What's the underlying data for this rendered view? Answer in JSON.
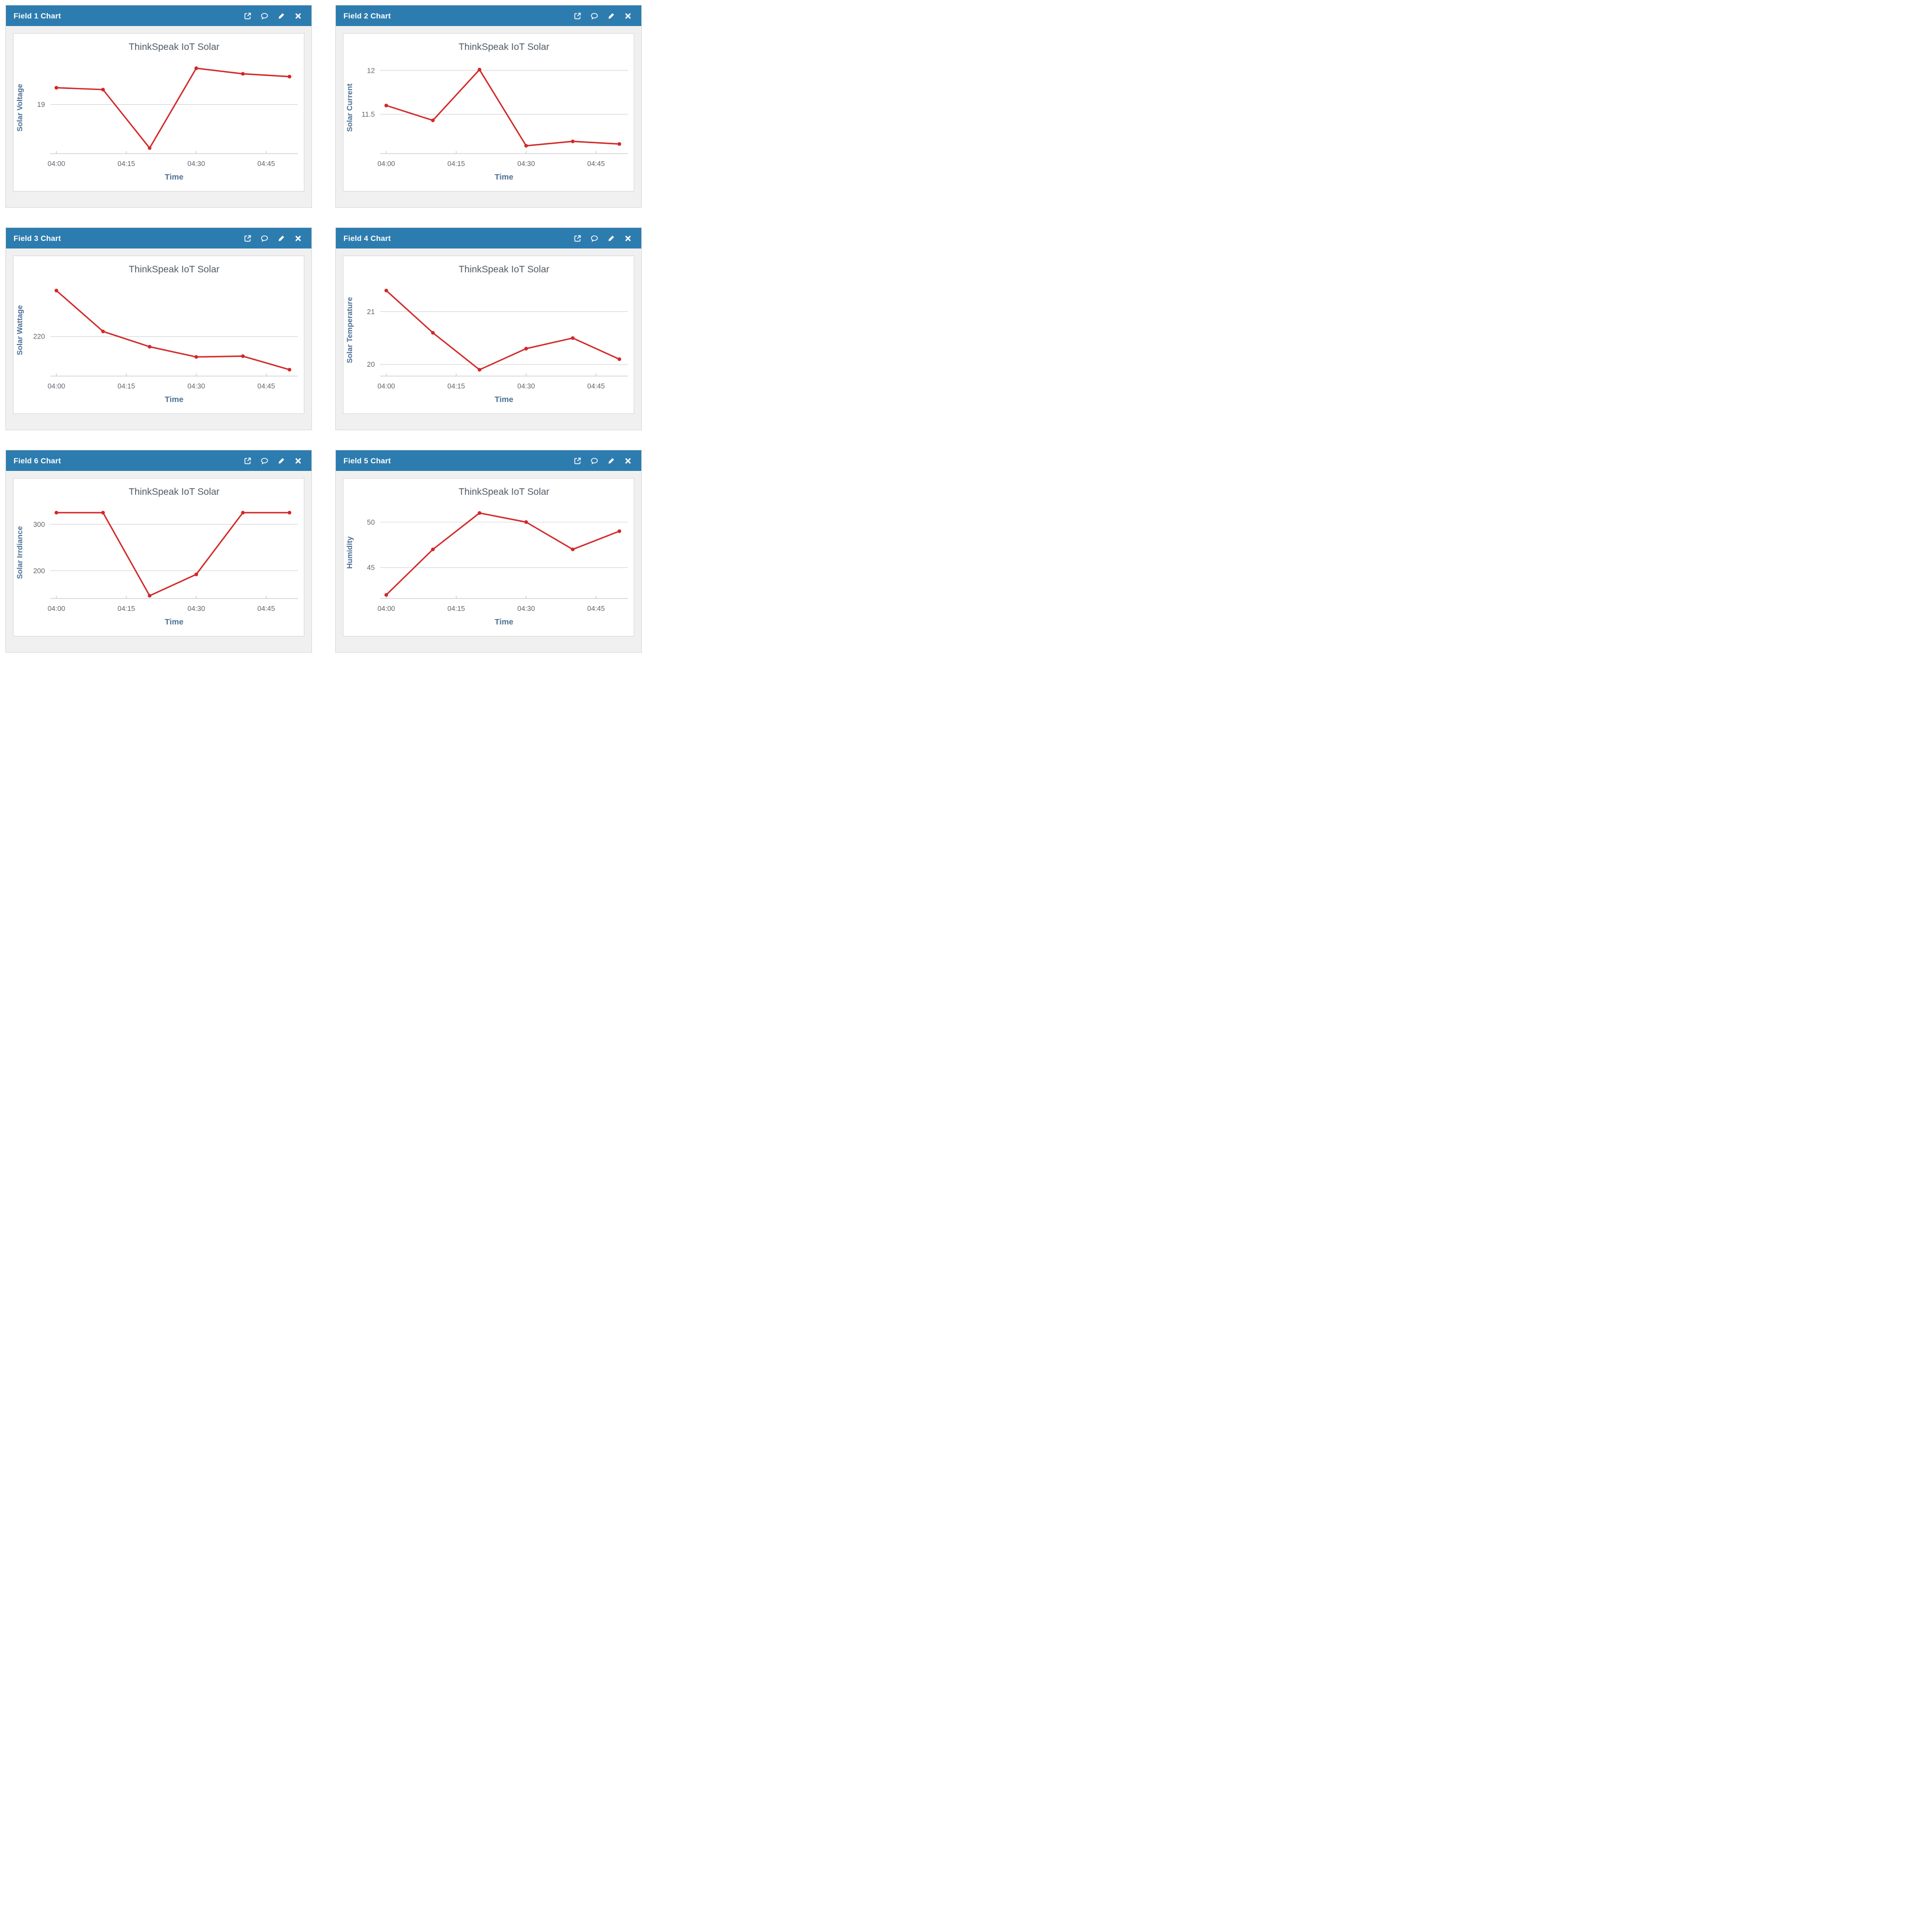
{
  "colors": {
    "header_bg": "#2d7caf",
    "header_text": "#ffffff",
    "line": "#d22727",
    "marker": "#d22727",
    "chart_title": "#4e5a66",
    "axis_label": "#4d7195",
    "tick_label": "#5f656b",
    "gridline": "#d2d2d2",
    "axis_line": "#c6c9cc",
    "panel_body_bg": "#f0f0f0",
    "card_bg": "#ffffff",
    "card_border": "#d9d9d9"
  },
  "panel_actions": [
    {
      "name": "external-link",
      "icon": "external-link-icon"
    },
    {
      "name": "comment",
      "icon": "comment-icon"
    },
    {
      "name": "edit",
      "icon": "pencil-icon"
    },
    {
      "name": "close",
      "icon": "close-icon"
    }
  ],
  "panels": [
    {
      "title": "Field 1 Chart"
    },
    {
      "title": "Field 2 Chart"
    },
    {
      "title": "Field 3 Chart"
    },
    {
      "title": "Field 4 Chart"
    },
    {
      "title": "Field 6 Chart"
    },
    {
      "title": "Field 5 Chart"
    }
  ],
  "chart_data": [
    {
      "type": "line",
      "title": "ThinkSpeak IoT Solar",
      "xlabel": "Time",
      "ylabel": "Solar Voltage",
      "x_times": [
        "04:00",
        "04:10",
        "04:20",
        "04:30",
        "04:40",
        "04:50"
      ],
      "x_minutes": [
        0,
        10,
        20,
        30,
        40,
        50
      ],
      "values": [
        19.18,
        19.16,
        18.53,
        19.39,
        19.33,
        19.3
      ],
      "x_ticks": [
        {
          "minute": 0,
          "label": "04:00"
        },
        {
          "minute": 15,
          "label": "04:15"
        },
        {
          "minute": 30,
          "label": "04:30"
        },
        {
          "minute": 45,
          "label": "04:45"
        }
      ],
      "y_gridlines": [
        {
          "value": 19,
          "label": "19"
        }
      ],
      "ylim": [
        18.47,
        19.46
      ],
      "xlim": [
        -1.3,
        51.8
      ],
      "legend": "none",
      "grid": true
    },
    {
      "type": "line",
      "title": "ThinkSpeak IoT Solar",
      "xlabel": "Time",
      "ylabel": "Solar Current",
      "x_times": [
        "04:00",
        "04:10",
        "04:20",
        "04:30",
        "04:40",
        "04:50"
      ],
      "x_minutes": [
        0,
        10,
        20,
        30,
        40,
        50
      ],
      "values": [
        11.6,
        11.43,
        12.01,
        11.14,
        11.19,
        11.16
      ],
      "x_ticks": [
        {
          "minute": 0,
          "label": "04:00"
        },
        {
          "minute": 15,
          "label": "04:15"
        },
        {
          "minute": 30,
          "label": "04:30"
        },
        {
          "minute": 45,
          "label": "04:45"
        }
      ],
      "y_gridlines": [
        {
          "value": 11.5,
          "label": "11.5"
        },
        {
          "value": 12,
          "label": "12"
        }
      ],
      "ylim": [
        11.05,
        12.1
      ],
      "xlim": [
        -1.3,
        51.8
      ],
      "legend": "none",
      "grid": true
    },
    {
      "type": "line",
      "title": "ThinkSpeak IoT Solar",
      "xlabel": "Time",
      "ylabel": "Solar Wattage",
      "x_times": [
        "04:00",
        "04:10",
        "04:20",
        "04:30",
        "04:40",
        "04:50"
      ],
      "x_minutes": [
        0,
        10,
        20,
        30,
        40,
        50
      ],
      "values": [
        238,
        222,
        216,
        212,
        212.3,
        207
      ],
      "x_ticks": [
        {
          "minute": 0,
          "label": "04:00"
        },
        {
          "minute": 15,
          "label": "04:15"
        },
        {
          "minute": 30,
          "label": "04:30"
        },
        {
          "minute": 45,
          "label": "04:45"
        }
      ],
      "y_gridlines": [
        {
          "value": 220,
          "label": "220"
        }
      ],
      "ylim": [
        204.5,
        240.5
      ],
      "xlim": [
        -1.3,
        51.8
      ],
      "legend": "none",
      "grid": true
    },
    {
      "type": "line",
      "title": "ThinkSpeak IoT Solar",
      "xlabel": "Time",
      "ylabel": "Solar Temperature",
      "x_times": [
        "04:00",
        "04:10",
        "04:20",
        "04:30",
        "04:40",
        "04:50"
      ],
      "x_minutes": [
        0,
        10,
        20,
        30,
        40,
        50
      ],
      "values": [
        21.4,
        20.6,
        19.9,
        20.3,
        20.5,
        20.1
      ],
      "x_ticks": [
        {
          "minute": 0,
          "label": "04:00"
        },
        {
          "minute": 15,
          "label": "04:15"
        },
        {
          "minute": 30,
          "label": "04:30"
        },
        {
          "minute": 45,
          "label": "04:45"
        }
      ],
      "y_gridlines": [
        {
          "value": 20,
          "label": "20"
        },
        {
          "value": 21,
          "label": "21"
        }
      ],
      "ylim": [
        19.78,
        21.52
      ],
      "xlim": [
        -1.3,
        51.8
      ],
      "legend": "none",
      "grid": true
    },
    {
      "type": "line",
      "title": "ThinkSpeak IoT Solar",
      "xlabel": "Time",
      "ylabel": "Solar Irrdiance",
      "x_times": [
        "04:00",
        "04:10",
        "04:20",
        "04:30",
        "04:40",
        "04:50"
      ],
      "x_minutes": [
        0,
        10,
        20,
        30,
        40,
        50
      ],
      "values": [
        325,
        325,
        146,
        192,
        325,
        325
      ],
      "x_ticks": [
        {
          "minute": 0,
          "label": "04:00"
        },
        {
          "minute": 15,
          "label": "04:15"
        },
        {
          "minute": 30,
          "label": "04:30"
        },
        {
          "minute": 45,
          "label": "04:45"
        }
      ],
      "y_gridlines": [
        {
          "value": 200,
          "label": "200"
        },
        {
          "value": 300,
          "label": "300"
        }
      ],
      "ylim": [
        140,
        338
      ],
      "xlim": [
        -1.3,
        51.8
      ],
      "legend": "none",
      "grid": true
    },
    {
      "type": "line",
      "title": "ThinkSpeak IoT Solar",
      "xlabel": "Time",
      "ylabel": "Humidity",
      "x_times": [
        "04:00",
        "04:10",
        "04:20",
        "04:30",
        "04:40",
        "04:50"
      ],
      "x_minutes": [
        0,
        10,
        20,
        30,
        40,
        50
      ],
      "values": [
        42,
        47,
        51,
        50,
        47,
        49
      ],
      "x_ticks": [
        {
          "minute": 0,
          "label": "04:00"
        },
        {
          "minute": 15,
          "label": "04:15"
        },
        {
          "minute": 30,
          "label": "04:30"
        },
        {
          "minute": 45,
          "label": "04:45"
        }
      ],
      "y_gridlines": [
        {
          "value": 45,
          "label": "45"
        },
        {
          "value": 50,
          "label": "50"
        }
      ],
      "ylim": [
        41.6,
        51.7
      ],
      "xlim": [
        -1.3,
        51.8
      ],
      "legend": "none",
      "grid": true
    }
  ]
}
